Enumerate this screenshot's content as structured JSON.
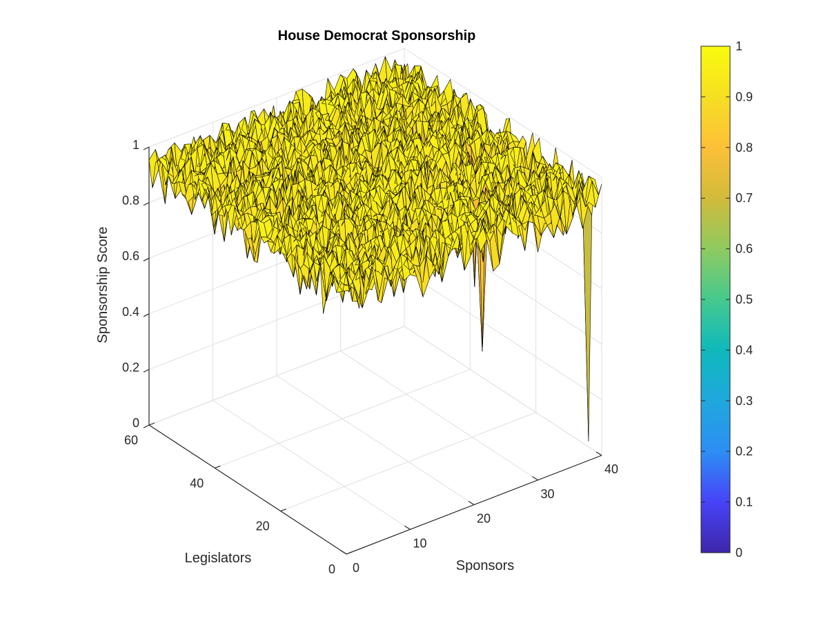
{
  "chart_data": {
    "type": "surface",
    "title": "House Democrat Sponsorship",
    "xlabel": "Sponsors",
    "ylabel": "Legislators",
    "zlabel": "Sponsorship Score",
    "xlim": [
      0,
      40
    ],
    "ylim": [
      0,
      60
    ],
    "zlim": [
      0,
      1
    ],
    "x_ticks": [
      "0",
      "10",
      "20",
      "30",
      "40"
    ],
    "y_ticks": [
      "0",
      "20",
      "40",
      "60"
    ],
    "z_ticks": [
      "0",
      "0.2",
      "0.4",
      "0.6",
      "0.8",
      "1"
    ],
    "grid": true,
    "colormap": "parula",
    "colorbar": {
      "range": [
        0,
        1
      ],
      "ticks": [
        "0",
        "0.1",
        "0.2",
        "0.3",
        "0.4",
        "0.5",
        "0.6",
        "0.7",
        "0.8",
        "0.9",
        "1"
      ],
      "stops": [
        "#3e26a8",
        "#4743f8",
        "#2d8ef4",
        "#1fa8dd",
        "#0fb9bc",
        "#45c98e",
        "#8fca60",
        "#d2bb3b",
        "#fcc038",
        "#f6df23",
        "#f9fb0e"
      ]
    },
    "grid_size": {
      "sponsors": 40,
      "legislators": 60
    },
    "baseline_value": 0.95,
    "notable_points": [
      {
        "sponsor": 40,
        "legislator": 4,
        "value": 0.02
      },
      {
        "sponsor": 28,
        "legislator": 13,
        "value": 0.38
      },
      {
        "sponsor": 37,
        "legislator": 7,
        "value": 0.85
      },
      {
        "sponsor": 34,
        "legislator": 27,
        "value": 0.45
      },
      {
        "sponsor": 32,
        "legislator": 40,
        "value": 0.7
      },
      {
        "sponsor": 14,
        "legislator": 30,
        "value": 0.8
      }
    ]
  }
}
